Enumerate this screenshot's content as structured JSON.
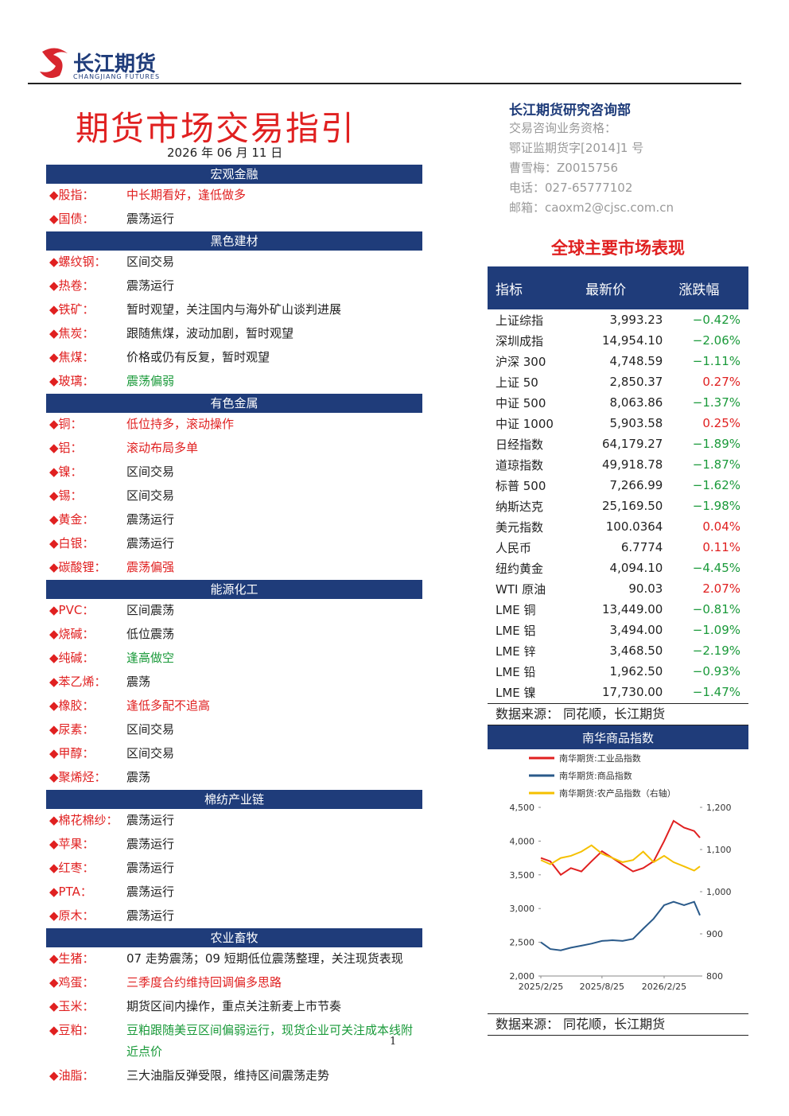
{
  "header": {
    "logo_cn": "长江期货",
    "logo_en": "CHANGJIANG FUTURES"
  },
  "title": "期货市场交易指引",
  "date": "2026 年 06 月 11 日",
  "contact": {
    "dept": "长江期货研究咨询部",
    "lines": [
      "交易咨询业务资格：",
      "鄂证监期货字[2014]1 号",
      "曹雪梅：Z0015756",
      "电话：027-65777102",
      "邮箱：caoxm2@cjsc.com.cn"
    ]
  },
  "sections": [
    {
      "title": "宏观金融",
      "items": [
        {
          "name": "股指：",
          "text": "中长期看好，逢低做多",
          "color": "#e02020"
        },
        {
          "name": "国债：",
          "text": "震荡运行",
          "color": "#222"
        }
      ]
    },
    {
      "title": "黑色建材",
      "items": [
        {
          "name": "螺纹钢：",
          "text": "区间交易",
          "color": "#222"
        },
        {
          "name": "热卷：",
          "text": "震荡运行",
          "color": "#222"
        },
        {
          "name": "铁矿：",
          "text": "暂时观望，关注国内与海外矿山谈判进展",
          "color": "#222"
        },
        {
          "name": "焦炭：",
          "text": "跟随焦煤，波动加剧，暂时观望",
          "color": "#222"
        },
        {
          "name": "焦煤：",
          "text": "价格或仍有反复，暂时观望",
          "color": "#222"
        },
        {
          "name": "玻璃：",
          "text": "震荡偏弱",
          "color": "#1a9a3a"
        }
      ]
    },
    {
      "title": "有色金属",
      "items": [
        {
          "name": "铜：",
          "text": "低位持多，滚动操作",
          "color": "#e02020"
        },
        {
          "name": "铝：",
          "text": "滚动布局多单",
          "color": "#e02020"
        },
        {
          "name": "镍：",
          "text": "区间交易",
          "color": "#222"
        },
        {
          "name": "锡：",
          "text": "区间交易",
          "color": "#222"
        },
        {
          "name": "黄金：",
          "text": "震荡运行",
          "color": "#222"
        },
        {
          "name": "白银：",
          "text": "震荡运行",
          "color": "#222"
        },
        {
          "name": "碳酸锂：",
          "text": "震荡偏强",
          "color": "#e02020"
        }
      ]
    },
    {
      "title": "能源化工",
      "items": [
        {
          "name": "PVC：",
          "text": "区间震荡",
          "color": "#222"
        },
        {
          "name": "烧碱：",
          "text": "低位震荡",
          "color": "#222"
        },
        {
          "name": "纯碱：",
          "text": "逢高做空",
          "color": "#1a9a3a"
        },
        {
          "name": "苯乙烯：",
          "text": "震荡",
          "color": "#222"
        },
        {
          "name": "橡胶：",
          "text": "逢低多配不追高",
          "color": "#e02020"
        },
        {
          "name": "尿素：",
          "text": "区间交易",
          "color": "#222"
        },
        {
          "name": "甲醇：",
          "text": "区间交易",
          "color": "#222"
        },
        {
          "name": "聚烯烃：",
          "text": "震荡",
          "color": "#222"
        }
      ]
    },
    {
      "title": "棉纺产业链",
      "items": [
        {
          "name": "棉花棉纱：",
          "text": "震荡运行",
          "color": "#222"
        },
        {
          "name": "苹果：",
          "text": "震荡运行",
          "color": "#222"
        },
        {
          "name": "红枣：",
          "text": "震荡运行",
          "color": "#222"
        },
        {
          "name": "PTA：",
          "text": "震荡运行",
          "color": "#222"
        },
        {
          "name": "原木：",
          "text": "震荡运行",
          "color": "#222"
        }
      ]
    },
    {
      "title": "农业畜牧",
      "items": [
        {
          "name": "生猪：",
          "text": "07 走势震荡；09 短期低位震荡整理，关注现货表现",
          "color": "#222"
        },
        {
          "name": "鸡蛋：",
          "text": "三季度合约维持回调偏多思路",
          "color": "#e02020"
        },
        {
          "name": "玉米：",
          "text": "期货区间内操作，重点关注新麦上市节奏",
          "color": "#222"
        },
        {
          "name": "豆粕：",
          "text": "豆粕跟随美豆区间偏弱运行，现货企业可关注成本线附近点价",
          "color": "#1a9a3a"
        },
        {
          "name": "油脂：",
          "text": "三大油脂反弹受限，维持区间震荡走势",
          "color": "#222"
        }
      ]
    }
  ],
  "market": {
    "title": "全球主要市场表现",
    "columns": [
      "指标",
      "最新价",
      "涨跌幅"
    ],
    "rows": [
      [
        "上证综指",
        "3,993.23",
        "−0.42%"
      ],
      [
        "深圳成指",
        "14,954.10",
        "−2.06%"
      ],
      [
        "沪深 300",
        "4,748.59",
        "−1.11%"
      ],
      [
        "上证 50",
        "2,850.37",
        "0.27%"
      ],
      [
        "中证 500",
        "8,063.86",
        "−1.37%"
      ],
      [
        "中证 1000",
        "5,903.58",
        "0.25%"
      ],
      [
        "日经指数",
        "64,179.27",
        "−1.89%"
      ],
      [
        "道琼指数",
        "49,918.78",
        "−1.87%"
      ],
      [
        "标普 500",
        "7,266.99",
        "−1.62%"
      ],
      [
        "纳斯达克",
        "25,169.50",
        "−1.98%"
      ],
      [
        "美元指数",
        "100.0364",
        "0.04%"
      ],
      [
        "人民币",
        "6.7774",
        "0.11%"
      ],
      [
        "纽约黄金",
        "4,094.10",
        "−4.45%"
      ],
      [
        "WTI 原油",
        "90.03",
        "2.07%"
      ],
      [
        "LME 铜",
        "13,449.00",
        "−0.81%"
      ],
      [
        "LME 铝",
        "3,494.00",
        "−1.09%"
      ],
      [
        "LME 锌",
        "3,468.50",
        "−2.19%"
      ],
      [
        "LME 铅",
        "1,962.50",
        "−0.93%"
      ],
      [
        "LME 镍",
        "17,730.00",
        "−1.47%"
      ]
    ],
    "source": "数据来源：  同花顺，长江期货"
  },
  "chart_data": {
    "type": "line",
    "title": "南华商品指数",
    "x": [
      "2025/2/25",
      "2025/3/25",
      "2025/4/25",
      "2025/5/25",
      "2025/6/25",
      "2025/7/25",
      "2025/8/25",
      "2025/9/25",
      "2025/10/25",
      "2025/11/25",
      "2025/12/25",
      "2026/1/25",
      "2026/2/25",
      "2026/3/25",
      "2026/4/25",
      "2026/5/25",
      "2026/6/11"
    ],
    "xlim": [
      "2025/2/25",
      "2026/6/11"
    ],
    "xticks": [
      "2025/2/25",
      "2025/8/25",
      "2026/2/25"
    ],
    "series": [
      {
        "name": "南华期货:工业品指数",
        "color": "#e02020",
        "values": [
          3750,
          3700,
          3500,
          3600,
          3550,
          3700,
          3850,
          3750,
          3650,
          3550,
          3600,
          3700,
          4000,
          4300,
          4200,
          4150,
          4050
        ]
      },
      {
        "name": "南华期货:商品指数",
        "color": "#2a5a8a",
        "values": [
          2500,
          2400,
          2380,
          2420,
          2450,
          2480,
          2520,
          2530,
          2520,
          2550,
          2700,
          2850,
          3050,
          3100,
          3050,
          3100,
          2900
        ]
      },
      {
        "name": "南华期货:农产品指数（右轴）",
        "color": "#f5c000",
        "axis": "y2",
        "values": [
          1075,
          1065,
          1080,
          1085,
          1095,
          1110,
          1090,
          1080,
          1070,
          1075,
          1095,
          1070,
          1085,
          1070,
          1060,
          1050,
          1060
        ]
      }
    ],
    "ylim": [
      2000,
      4500
    ],
    "yticks": [
      {
        "value": 2000,
        "label": "2,000"
      },
      {
        "value": 2500,
        "label": "2,500"
      },
      {
        "value": 3000,
        "label": "3,000"
      },
      {
        "value": 3500,
        "label": "3,500"
      },
      {
        "value": 4000,
        "label": "4,000"
      },
      {
        "value": 4500,
        "label": "4,500"
      }
    ],
    "y2lim": [
      800,
      1200
    ],
    "y2ticks": [
      800,
      900,
      {
        "value": 1000,
        "label": "1,000"
      },
      {
        "value": 1100,
        "label": "1,100"
      },
      {
        "value": 1200,
        "label": "1,200"
      }
    ],
    "source": "数据来源：  同花顺，长江期货"
  },
  "page_number": "1"
}
